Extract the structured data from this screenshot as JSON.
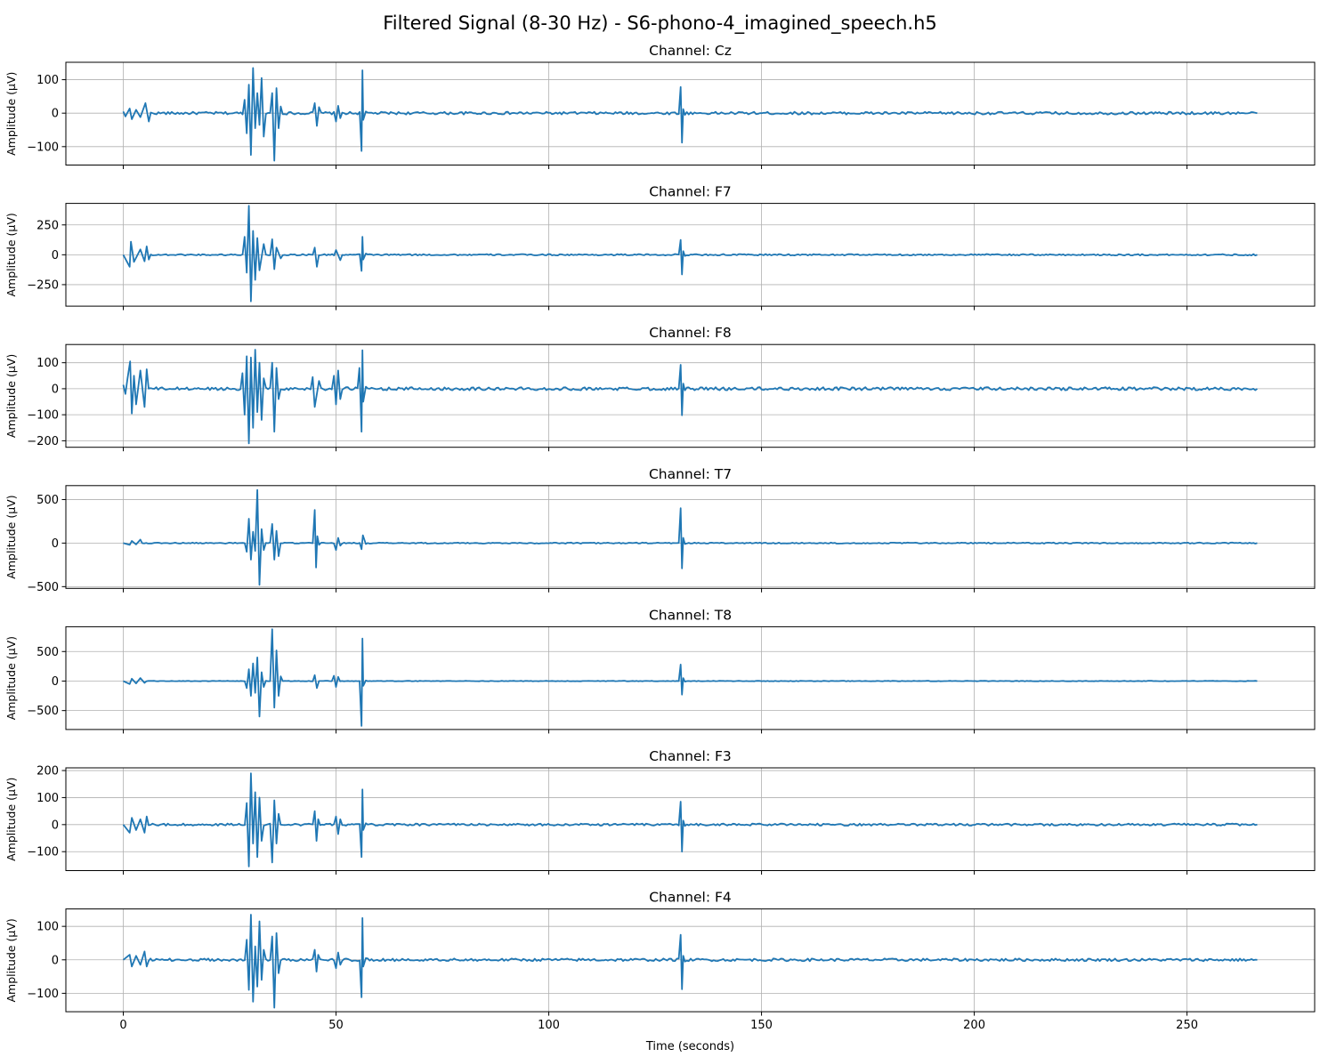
{
  "figure": {
    "suptitle": "Filtered Signal (8-30 Hz) - S6-phono-4_imagined_speech.h5",
    "xlabel": "Time (seconds)",
    "line_color": "#1f77b4",
    "grid_color": "#b0b0b0"
  },
  "chart_data": [
    {
      "type": "line",
      "title": "Channel: Cz",
      "xlabel": "",
      "ylabel": "Amplitude (µV)",
      "xlim": [
        -13.5,
        280
      ],
      "ylim": [
        -155,
        152
      ],
      "grid": true,
      "xticks": [
        0,
        50,
        100,
        150,
        200,
        250
      ],
      "xtick_labels": [
        "0",
        "50",
        "100",
        "150",
        "200",
        "250"
      ],
      "yticks": [
        -100,
        0,
        100
      ],
      "ytick_labels": [
        "−100",
        "0",
        "100"
      ],
      "baseline_noise": 4,
      "series": [
        {
          "x": [
            0,
            0.5,
            1.5,
            2,
            3,
            4,
            5.2,
            6,
            28.5,
            29,
            29.5,
            30,
            30.5,
            31,
            31.5,
            32,
            32.5,
            33,
            35,
            35.5,
            36,
            36.5,
            37,
            45,
            45.5,
            46,
            50,
            50.5,
            51,
            56,
            56.2,
            56.4,
            57,
            131,
            131.3,
            131.6,
            132,
            266.5
          ],
          "y": [
            5,
            -10,
            14,
            -18,
            10,
            -12,
            30,
            -25,
            40,
            -60,
            85,
            -125,
            135,
            -45,
            60,
            -35,
            105,
            -70,
            60,
            -142,
            75,
            -45,
            20,
            30,
            -38,
            18,
            -25,
            22,
            -15,
            -113,
            128,
            -20,
            5,
            78,
            -88,
            12,
            -5,
            0
          ]
        }
      ]
    },
    {
      "type": "line",
      "title": "Channel: F7",
      "xlabel": "",
      "ylabel": "Amplitude (µV)",
      "xlim": [
        -13.5,
        280
      ],
      "ylim": [
        -430,
        430
      ],
      "grid": true,
      "xticks": [
        0,
        50,
        100,
        150,
        200,
        250
      ],
      "xtick_labels": [
        "0",
        "50",
        "100",
        "150",
        "200",
        "250"
      ],
      "yticks": [
        -250,
        0,
        250
      ],
      "ytick_labels": [
        "−250",
        "0",
        "250"
      ],
      "baseline_noise": 6,
      "series": [
        {
          "x": [
            0,
            1.5,
            1.8,
            2.5,
            4,
            5,
            5.5,
            6,
            28.5,
            29,
            29.5,
            30,
            30.5,
            31,
            31.5,
            32,
            33,
            35,
            35.5,
            36,
            37,
            45,
            45.5,
            50,
            51,
            56,
            56.2,
            56.4,
            57,
            131,
            131.3,
            131.6,
            132,
            266.5
          ],
          "y": [
            0,
            -100,
            110,
            -60,
            45,
            -55,
            70,
            -40,
            150,
            -150,
            410,
            -390,
            200,
            -210,
            140,
            -130,
            90,
            130,
            -120,
            60,
            -30,
            60,
            -100,
            40,
            -45,
            -135,
            150,
            -40,
            10,
            125,
            -165,
            30,
            -10,
            0
          ]
        }
      ]
    },
    {
      "type": "line",
      "title": "Channel: F8",
      "xlabel": "",
      "ylabel": "Amplitude (µV)",
      "xlim": [
        -13.5,
        280
      ],
      "ylim": [
        -225,
        170
      ],
      "grid": true,
      "xticks": [
        0,
        50,
        100,
        150,
        200,
        250
      ],
      "xtick_labels": [
        "0",
        "50",
        "100",
        "150",
        "200",
        "250"
      ],
      "yticks": [
        -200,
        -100,
        0,
        100
      ],
      "ytick_labels": [
        "−200",
        "−100",
        "0",
        "100"
      ],
      "baseline_noise": 6,
      "series": [
        {
          "x": [
            0,
            0.5,
            1,
            1.6,
            2,
            2.5,
            3,
            4,
            5,
            5.5,
            28,
            28.5,
            29,
            29.5,
            30,
            30.5,
            31,
            31.5,
            32,
            32.5,
            33,
            35,
            35.5,
            36,
            36.5,
            44.5,
            45,
            46,
            49.5,
            50,
            50.5,
            51,
            55.5,
            56,
            56.2,
            56.4,
            57,
            131,
            131.3,
            131.6,
            132,
            266.5
          ],
          "y": [
            15,
            -20,
            40,
            105,
            -95,
            50,
            -60,
            70,
            -70,
            75,
            60,
            -100,
            125,
            -210,
            120,
            -150,
            150,
            -90,
            100,
            -120,
            40,
            100,
            -165,
            80,
            -40,
            45,
            -70,
            30,
            50,
            -60,
            70,
            -40,
            80,
            -165,
            148,
            -50,
            8,
            92,
            -102,
            20,
            -6,
            0
          ]
        }
      ]
    },
    {
      "type": "line",
      "title": "Channel: T7",
      "xlabel": "",
      "ylabel": "Amplitude (µV)",
      "xlim": [
        -13.5,
        280
      ],
      "ylim": [
        -520,
        660
      ],
      "grid": true,
      "xticks": [
        0,
        50,
        100,
        150,
        200,
        250
      ],
      "xtick_labels": [
        "0",
        "50",
        "100",
        "150",
        "200",
        "250"
      ],
      "yticks": [
        -500,
        0,
        500
      ],
      "ytick_labels": [
        "−500",
        "0",
        "500"
      ],
      "baseline_noise": 6,
      "series": [
        {
          "x": [
            0,
            1.5,
            2,
            3,
            4,
            29,
            29.5,
            30,
            30.5,
            31,
            31.5,
            32,
            32.5,
            33,
            35,
            35.5,
            36,
            36.5,
            45,
            45.3,
            45.6,
            46,
            50,
            50.5,
            51,
            56,
            56.3,
            57,
            131,
            131.3,
            131.6,
            132,
            266.5
          ],
          "y": [
            0,
            -20,
            25,
            -15,
            40,
            -100,
            280,
            -190,
            130,
            -90,
            610,
            -480,
            160,
            -80,
            220,
            -190,
            140,
            -150,
            380,
            -280,
            80,
            -20,
            -80,
            60,
            -30,
            -70,
            90,
            -10,
            400,
            -290,
            60,
            -10,
            0
          ]
        }
      ]
    },
    {
      "type": "line",
      "title": "Channel: T8",
      "xlabel": "",
      "ylabel": "Amplitude (µV)",
      "xlim": [
        -13.5,
        280
      ],
      "ylim": [
        -820,
        920
      ],
      "grid": true,
      "xticks": [
        0,
        50,
        100,
        150,
        200,
        250
      ],
      "xtick_labels": [
        "0",
        "50",
        "100",
        "150",
        "200",
        "250"
      ],
      "yticks": [
        -500,
        0,
        500
      ],
      "ytick_labels": [
        "−500",
        "0",
        "500"
      ],
      "baseline_noise": 4,
      "series": [
        {
          "x": [
            0,
            1.5,
            2,
            3,
            4,
            5,
            29,
            29.5,
            30,
            30.5,
            31,
            31.5,
            32,
            32.5,
            33,
            35,
            35.5,
            36,
            36.5,
            37,
            45,
            45.5,
            49.5,
            50,
            50.5,
            56,
            56.2,
            56.4,
            57,
            131,
            131.3,
            131.6,
            132,
            266.5
          ],
          "y": [
            0,
            -50,
            40,
            -40,
            50,
            -30,
            -120,
            200,
            -250,
            300,
            -200,
            400,
            -600,
            150,
            -100,
            880,
            -450,
            520,
            -250,
            80,
            100,
            -120,
            90,
            -100,
            70,
            -760,
            720,
            -80,
            10,
            280,
            -230,
            50,
            -10,
            0
          ]
        }
      ]
    },
    {
      "type": "line",
      "title": "Channel: F3",
      "xlabel": "",
      "ylabel": "Amplitude (µV)",
      "xlim": [
        -13.5,
        280
      ],
      "ylim": [
        -170,
        210
      ],
      "grid": true,
      "xticks": [
        0,
        50,
        100,
        150,
        200,
        250
      ],
      "xtick_labels": [
        "0",
        "50",
        "100",
        "150",
        "200",
        "250"
      ],
      "yticks": [
        -100,
        0,
        100,
        200
      ],
      "ytick_labels": [
        "−100",
        "0",
        "100",
        "200"
      ],
      "baseline_noise": 4,
      "series": [
        {
          "x": [
            0,
            1.5,
            2,
            3,
            4,
            5,
            5.5,
            29,
            29.5,
            30,
            30.5,
            31,
            31.5,
            32,
            32.5,
            35,
            35.5,
            36,
            36.5,
            45,
            45.4,
            45.8,
            50,
            50.5,
            51,
            56,
            56.2,
            56.4,
            57,
            131,
            131.3,
            131.6,
            132,
            266.5
          ],
          "y": [
            0,
            -30,
            25,
            -20,
            20,
            -30,
            30,
            80,
            -155,
            190,
            -70,
            120,
            -120,
            100,
            -60,
            -140,
            90,
            -70,
            40,
            50,
            -60,
            20,
            30,
            -35,
            20,
            -120,
            130,
            -20,
            5,
            85,
            -100,
            15,
            -5,
            0
          ]
        }
      ]
    },
    {
      "type": "line",
      "title": "Channel: F4",
      "xlabel": "",
      "ylabel": "Amplitude (µV)",
      "xlim": [
        -13.5,
        280
      ],
      "ylim": [
        -155,
        152
      ],
      "grid": true,
      "xticks": [
        0,
        50,
        100,
        150,
        200,
        250
      ],
      "xtick_labels": [
        "0",
        "50",
        "100",
        "150",
        "200",
        "250"
      ],
      "yticks": [
        -100,
        0,
        100
      ],
      "ytick_labels": [
        "−100",
        "0",
        "100"
      ],
      "baseline_noise": 4,
      "series": [
        {
          "x": [
            0,
            1.5,
            2,
            3,
            4,
            5,
            5.5,
            29,
            29.5,
            30,
            30.5,
            31,
            31.5,
            32,
            32.5,
            33,
            35,
            35.5,
            36,
            36.5,
            45,
            45.4,
            45.8,
            50,
            50.5,
            51,
            56,
            56.2,
            56.4,
            57,
            131,
            131.3,
            131.6,
            132,
            266.5
          ],
          "y": [
            0,
            15,
            -20,
            12,
            -15,
            25,
            -20,
            60,
            -90,
            135,
            -125,
            40,
            -80,
            115,
            -60,
            30,
            70,
            -143,
            80,
            -40,
            30,
            -35,
            15,
            -25,
            22,
            -15,
            -112,
            125,
            -20,
            5,
            75,
            -88,
            12,
            -5,
            0
          ]
        }
      ]
    }
  ]
}
